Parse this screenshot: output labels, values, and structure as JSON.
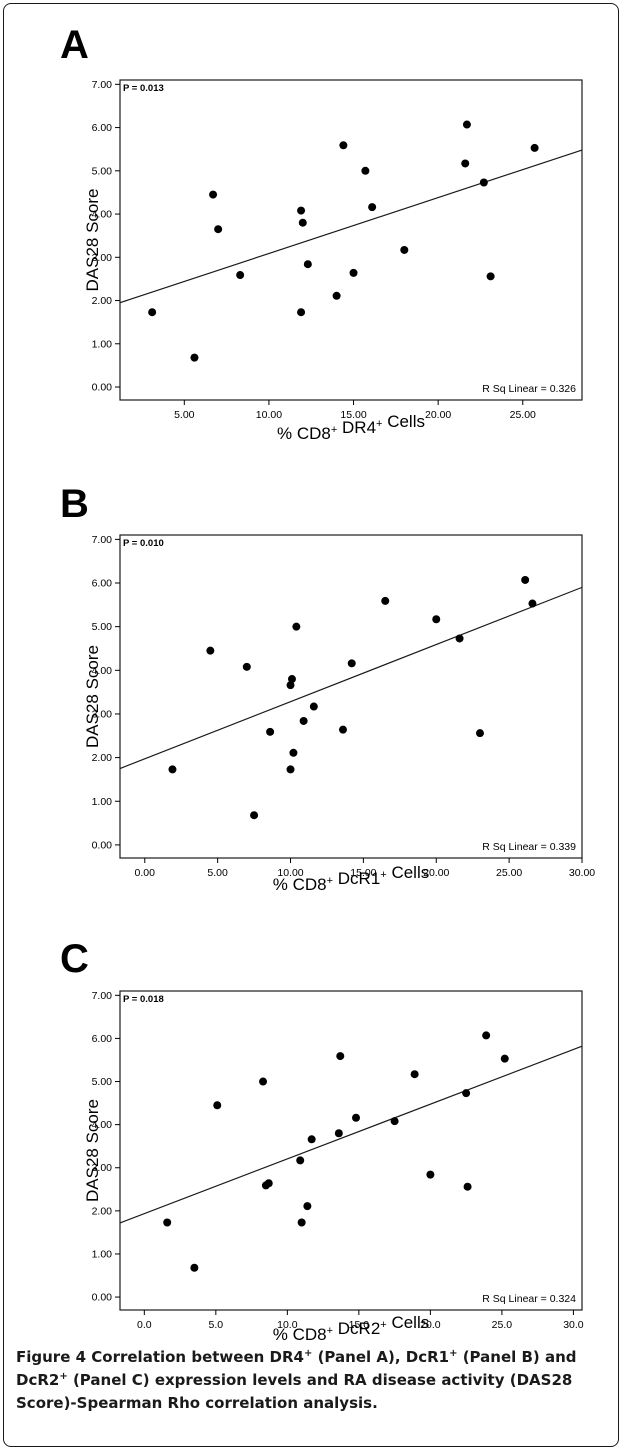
{
  "chart_data": [
    {
      "type": "scatter",
      "panel_label": "A",
      "p_value_text": "P = 0.013",
      "r_sq_text": "R Sq Linear = 0.326",
      "ylabel": "DAS28 Score",
      "xlabel": "% CD8+ DR4+ Cells",
      "xlabel_parts": [
        "% CD8",
        "+",
        " DR4",
        "+",
        " Cells"
      ],
      "xlim": [
        1.2,
        28.5
      ],
      "ylim": [
        -0.3,
        7.1
      ],
      "x_ticks": [
        5.0,
        10.0,
        15.0,
        20.0,
        25.0
      ],
      "x_tick_labels": [
        "5.00",
        "10.00",
        "15.00",
        "20.00",
        "25.00"
      ],
      "y_ticks": [
        0,
        1,
        2,
        3,
        4,
        5,
        6,
        7
      ],
      "y_tick_labels": [
        "0.00",
        "1.00",
        "2.00",
        "3.00",
        "4.00",
        "5.00",
        "6.00",
        "7.00"
      ],
      "fit_line": {
        "x": [
          1.2,
          28.5
        ],
        "y": [
          1.95,
          5.48
        ]
      },
      "points": [
        {
          "x": 3.1,
          "y": 1.73
        },
        {
          "x": 5.6,
          "y": 0.68
        },
        {
          "x": 6.7,
          "y": 4.45
        },
        {
          "x": 7.0,
          "y": 3.65
        },
        {
          "x": 8.3,
          "y": 2.59
        },
        {
          "x": 11.9,
          "y": 4.08
        },
        {
          "x": 12.0,
          "y": 3.8
        },
        {
          "x": 11.9,
          "y": 1.73
        },
        {
          "x": 12.3,
          "y": 2.84
        },
        {
          "x": 14.0,
          "y": 2.11
        },
        {
          "x": 14.4,
          "y": 5.59
        },
        {
          "x": 15.0,
          "y": 2.64
        },
        {
          "x": 15.7,
          "y": 5.0
        },
        {
          "x": 16.1,
          "y": 4.16
        },
        {
          "x": 18.0,
          "y": 3.17
        },
        {
          "x": 21.6,
          "y": 5.17
        },
        {
          "x": 21.7,
          "y": 6.07
        },
        {
          "x": 22.7,
          "y": 4.73
        },
        {
          "x": 23.1,
          "y": 2.56
        },
        {
          "x": 25.7,
          "y": 5.53
        }
      ]
    },
    {
      "type": "scatter",
      "panel_label": "B",
      "p_value_text": "P = 0.010",
      "r_sq_text": "R Sq Linear = 0.339",
      "ylabel": "DAS28 Score",
      "xlabel": "% CD8+ DcR1+ Cells",
      "xlabel_parts": [
        "% CD8",
        "+",
        " DcR1",
        "+",
        " Cells"
      ],
      "xlim": [
        -1.7,
        30.0
      ],
      "ylim": [
        -0.3,
        7.1
      ],
      "x_ticks": [
        0,
        5,
        10,
        15,
        20,
        25,
        30
      ],
      "x_tick_labels": [
        "0.00",
        "5.00",
        "10.00",
        "15.00",
        "20.00",
        "25.00",
        "30.00"
      ],
      "y_ticks": [
        0,
        1,
        2,
        3,
        4,
        5,
        6,
        7
      ],
      "y_tick_labels": [
        "0.00",
        "1.00",
        "2.00",
        "3.00",
        "4.00",
        "5.00",
        "6.00",
        "7.00"
      ],
      "fit_line": {
        "x": [
          -1.7,
          30.0
        ],
        "y": [
          1.75,
          5.9
        ]
      },
      "points": [
        {
          "x": 1.9,
          "y": 1.73
        },
        {
          "x": 4.5,
          "y": 4.45
        },
        {
          "x": 7.0,
          "y": 4.08
        },
        {
          "x": 7.5,
          "y": 0.68
        },
        {
          "x": 8.6,
          "y": 2.59
        },
        {
          "x": 10.0,
          "y": 3.66
        },
        {
          "x": 10.1,
          "y": 3.8
        },
        {
          "x": 10.0,
          "y": 1.73
        },
        {
          "x": 10.2,
          "y": 2.11
        },
        {
          "x": 10.4,
          "y": 5.0
        },
        {
          "x": 10.9,
          "y": 2.84
        },
        {
          "x": 11.6,
          "y": 3.17
        },
        {
          "x": 13.6,
          "y": 2.64
        },
        {
          "x": 14.2,
          "y": 4.16
        },
        {
          "x": 16.5,
          "y": 5.59
        },
        {
          "x": 20.0,
          "y": 5.17
        },
        {
          "x": 21.6,
          "y": 4.73
        },
        {
          "x": 23.0,
          "y": 2.56
        },
        {
          "x": 26.1,
          "y": 6.07
        },
        {
          "x": 26.6,
          "y": 5.53
        }
      ]
    },
    {
      "type": "scatter",
      "panel_label": "C",
      "p_value_text": "P = 0.018",
      "r_sq_text": "R Sq Linear = 0.324",
      "ylabel": "DAS28 Score",
      "xlabel": "% CD8+ DcR2+ Cells",
      "xlabel_parts": [
        "% CD8",
        "+",
        " DcR2",
        "+",
        " Cells"
      ],
      "xlim": [
        -1.7,
        30.6
      ],
      "ylim": [
        -0.3,
        7.1
      ],
      "x_ticks": [
        0,
        5,
        10,
        15,
        20,
        25,
        30
      ],
      "x_tick_labels": [
        "0.0",
        "5.0",
        "10.0",
        "15.0",
        "20.0",
        "25.0",
        "30.0"
      ],
      "y_ticks": [
        0,
        1,
        2,
        3,
        4,
        5,
        6,
        7
      ],
      "y_tick_labels": [
        "0.00",
        "1.00",
        "2.00",
        "3.00",
        "4.00",
        "5.00",
        "6.00",
        "7.00"
      ],
      "fit_line": {
        "x": [
          -1.7,
          30.6
        ],
        "y": [
          1.72,
          5.82
        ]
      },
      "points": [
        {
          "x": 1.6,
          "y": 1.73
        },
        {
          "x": 3.5,
          "y": 0.68
        },
        {
          "x": 5.1,
          "y": 4.45
        },
        {
          "x": 8.3,
          "y": 5.0
        },
        {
          "x": 8.5,
          "y": 2.59
        },
        {
          "x": 8.7,
          "y": 2.64
        },
        {
          "x": 10.9,
          "y": 3.17
        },
        {
          "x": 11.0,
          "y": 1.73
        },
        {
          "x": 11.4,
          "y": 2.11
        },
        {
          "x": 11.7,
          "y": 3.66
        },
        {
          "x": 13.6,
          "y": 3.8
        },
        {
          "x": 13.7,
          "y": 5.59
        },
        {
          "x": 14.8,
          "y": 4.16
        },
        {
          "x": 17.5,
          "y": 4.08
        },
        {
          "x": 18.9,
          "y": 5.17
        },
        {
          "x": 20.0,
          "y": 2.84
        },
        {
          "x": 22.5,
          "y": 4.73
        },
        {
          "x": 22.6,
          "y": 2.56
        },
        {
          "x": 23.9,
          "y": 6.07
        },
        {
          "x": 25.2,
          "y": 5.53
        }
      ]
    }
  ],
  "caption": {
    "figure_label": "Figure 4",
    "text": " Correlation between DR4+ (Panel A), DcR1+ (Panel B) and DcR2+ (Panel C) expression levels and RA disease activity (DAS28 Score)-Spearman Rho correlation analysis."
  },
  "colors": {
    "points": "#000000",
    "fit_line": "#1a1a1a",
    "frame": "#1a1a1a",
    "caption_text": "#1a1a1a"
  }
}
